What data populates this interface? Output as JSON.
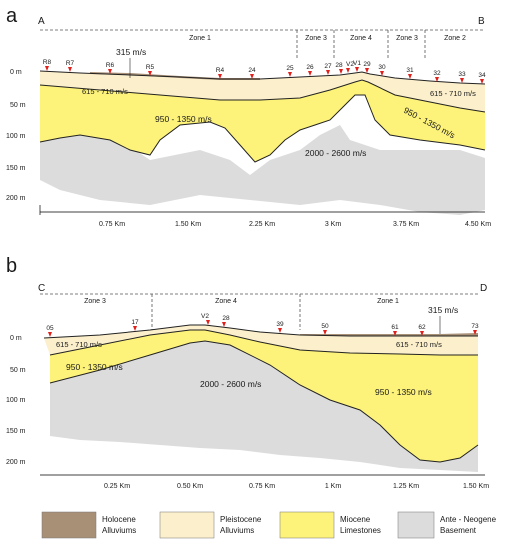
{
  "panel_a": {
    "letter": "a",
    "start_label": "A",
    "end_label": "B",
    "zones": [
      "Zone 1",
      "Zone 3",
      "Zone 4",
      "Zone 3",
      "Zone 2"
    ],
    "depth_ticks": [
      "0 m",
      "50 m",
      "100 m",
      "150 m",
      "200 m"
    ],
    "distance_ticks": [
      "0.75 Km",
      "1.50 Km",
      "2.25 Km",
      "3 Km",
      "3.75 Km",
      "4.50 Km"
    ],
    "stations": [
      "R8",
      "R7",
      "R6",
      "R5",
      "R4",
      "24",
      "25",
      "26",
      "27",
      "28",
      "V2",
      "V1",
      "29",
      "30",
      "31",
      "32",
      "33",
      "34"
    ],
    "velocities": {
      "holocene": "315 m/s",
      "pleistocene_left": "615 - 710 m/s",
      "pleistocene_right": "615 - 710 m/s",
      "miocene_left": "950 - 1350 m/s",
      "miocene_right": "950 - 1350 m/s",
      "basement": "2000 - 2600 m/s"
    }
  },
  "panel_b": {
    "letter": "b",
    "start_label": "C",
    "end_label": "D",
    "zones": [
      "Zone 3",
      "Zone 4",
      "Zone 1"
    ],
    "depth_ticks": [
      "0 m",
      "50 m",
      "100 m",
      "150 m",
      "200 m"
    ],
    "distance_ticks": [
      "0.25 Km",
      "0.50 Km",
      "0.75 Km",
      "1 Km",
      "1.25 Km",
      "1.50 Km"
    ],
    "stations": [
      "05",
      "17",
      "V2",
      "28",
      "39",
      "50",
      "61",
      "62",
      "73"
    ],
    "velocities": {
      "holocene": "315 m/s",
      "pleistocene_left": "615 - 710 m/s",
      "pleistocene_right": "615 - 710 m/s",
      "miocene_left": "950 - 1350 m/s",
      "miocene_right": "950 - 1350 m/s",
      "basement": "2000 - 2600 m/s"
    }
  },
  "legend": [
    {
      "line1": "Holocene",
      "line2": "Alluviums",
      "color": "#a89077"
    },
    {
      "line1": "Pleistocene",
      "line2": "Alluviums",
      "color": "#fbefcc"
    },
    {
      "line1": "Miocene",
      "line2": "Limestones",
      "color": "#fdf27a"
    },
    {
      "line1": "Ante - Neogene",
      "line2": "Basement",
      "color": "#dcdcdc"
    }
  ],
  "colors": {
    "holocene": "#a89077",
    "pleistocene": "#fbefcc",
    "miocene": "#fdf27a",
    "basement": "#dcdcdc",
    "station_marker": "#e0201b",
    "zone_line": "#555555"
  }
}
